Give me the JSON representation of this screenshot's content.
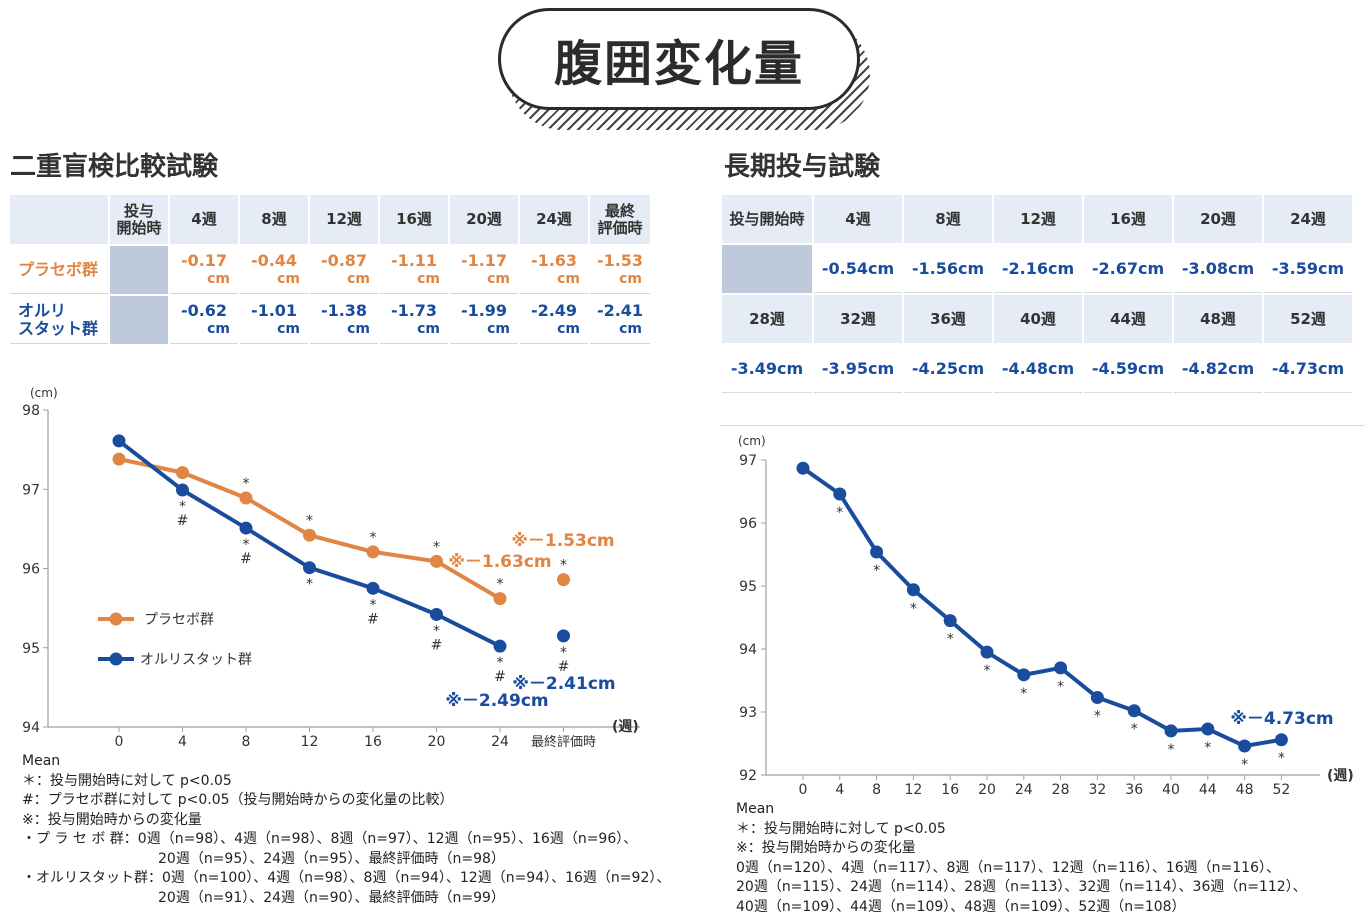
{
  "title": "腹囲変化量",
  "left": {
    "heading": "二重盲検比較試験",
    "table": {
      "headers": [
        "投与\n開始時",
        "4週",
        "8週",
        "12週",
        "16週",
        "20週",
        "24週",
        "最終\n評価時"
      ],
      "unit": "cm",
      "rows": [
        {
          "label": "プラセボ群",
          "values": [
            "-0.17",
            "-0.44",
            "-0.87",
            "-1.11",
            "-1.17",
            "-1.63",
            "-1.53"
          ]
        },
        {
          "label": "オルリ\nスタット群",
          "values": [
            "-0.62",
            "-1.01",
            "-1.38",
            "-1.73",
            "-1.99",
            "-2.49",
            "-2.41"
          ]
        }
      ]
    },
    "chart_data": {
      "type": "line",
      "y_unit": "(cm)",
      "x_unit": "(週)",
      "x_ticks": [
        "0",
        "4",
        "8",
        "12",
        "16",
        "20",
        "24",
        "最終評価時"
      ],
      "ylim": [
        94,
        98
      ],
      "y_ticks": [
        "98",
        "97",
        "96",
        "95",
        "94"
      ],
      "series": [
        {
          "name": "プラセボ群",
          "color": "#e08544",
          "x": [
            0,
            4,
            8,
            12,
            16,
            20,
            24
          ],
          "values": [
            97.38,
            97.21,
            96.89,
            96.42,
            96.21,
            96.09,
            95.62
          ],
          "final": 95.86,
          "marks": [
            "",
            "",
            "*",
            "*",
            "*",
            "*",
            "*"
          ],
          "final_mark": "*"
        },
        {
          "name": "オルリスタット群",
          "color": "#1a4c9e",
          "x": [
            0,
            4,
            8,
            12,
            16,
            20,
            24
          ],
          "values": [
            97.61,
            96.99,
            96.51,
            96.01,
            95.75,
            95.42,
            95.02
          ],
          "final": 95.15,
          "marks": [
            "",
            "*\n#",
            "*\n#",
            "*",
            "*\n#",
            "*\n#",
            "*\n#"
          ],
          "final_mark": "*\n#"
        }
      ],
      "annotations": [
        "※－1.53cm",
        "※－1.63cm",
        "※－2.49cm",
        "※－2.41cm"
      ],
      "legend": "left"
    },
    "notes": [
      "Mean",
      "＊：投与開始時に対して p<0.05",
      "#：プラセボ群に対して p<0.05（投与開始時からの変化量の比較）",
      "※：投与開始時からの変化量",
      "・プ ラ セ ボ 群：0週（n=98）、4週（n=98）、8週（n=97）、12週（n=95）、16週（n=96）、",
      "20週（n=95）、24週（n=95）、最終評価時（n=98）",
      "・オルリスタット群：0週（n=100）、4週（n=98）、8週（n=94）、12週（n=94）、16週（n=92）、",
      "20週（n=91）、24週（n=90）、最終評価時（n=99）"
    ]
  },
  "right": {
    "heading": "長期投与試験",
    "table": {
      "headers1": [
        "投与開始時",
        "4週",
        "8週",
        "12週",
        "16週",
        "20週",
        "24週"
      ],
      "values1": [
        "-0.54cm",
        "-1.56cm",
        "-2.16cm",
        "-2.67cm",
        "-3.08cm",
        "-3.59cm"
      ],
      "headers2": [
        "28週",
        "32週",
        "36週",
        "40週",
        "44週",
        "48週",
        "52週"
      ],
      "values2": [
        "-3.49cm",
        "-3.95cm",
        "-4.25cm",
        "-4.48cm",
        "-4.59cm",
        "-4.82cm",
        "-4.73cm"
      ]
    },
    "chart_data": {
      "type": "line",
      "y_unit": "(cm)",
      "x_unit": "(週)",
      "ylim": [
        92,
        97
      ],
      "y_ticks": [
        "97",
        "96",
        "95",
        "94",
        "93",
        "92"
      ],
      "x": [
        0,
        4,
        8,
        12,
        16,
        20,
        24,
        28,
        32,
        36,
        40,
        44,
        48,
        52
      ],
      "series": [
        {
          "name": "",
          "color": "#1a4c9e",
          "values": [
            96.87,
            96.46,
            95.54,
            94.94,
            94.45,
            93.95,
            93.59,
            93.7,
            93.23,
            93.02,
            92.7,
            92.73,
            92.46,
            92.56
          ],
          "marks": [
            "",
            "*",
            "*",
            "*",
            "*",
            "*",
            "*",
            "*",
            "*",
            "*",
            "*",
            "*",
            "*",
            "*"
          ]
        }
      ],
      "annotations": [
        "※－4.73cm"
      ]
    },
    "notes": [
      "Mean",
      "＊：投与開始時に対して p<0.05",
      "※：投与開始時からの変化量",
      "0週（n=120）、4週（n=117）、8週（n=117）、12週（n=116）、16週（n=116）、",
      "20週（n=115）、24週（n=114）、28週（n=113）、32週（n=114）、36週（n=112）、",
      "40週（n=109）、44週（n=109）、48週（n=109）、52週（n=108）"
    ]
  }
}
